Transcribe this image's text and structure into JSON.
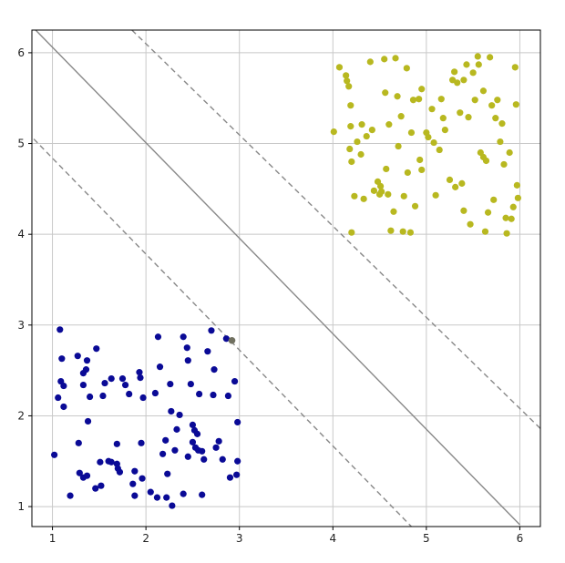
{
  "chart_data": {
    "type": "scatter",
    "title": "",
    "xlabel": "",
    "ylabel": "",
    "xlim": [
      0.78,
      6.22
    ],
    "ylim": [
      0.78,
      6.25
    ],
    "xticks": [
      1,
      2,
      3,
      4,
      5,
      6
    ],
    "yticks": [
      1,
      2,
      3,
      4,
      5,
      6
    ],
    "grid": true,
    "colors": {
      "class_a": "#0a0a96",
      "class_b": "#b8b820",
      "support_vector": "#707060",
      "lines": "#888888",
      "grid": "#c8c8c8",
      "axis": "#000000"
    },
    "lines": [
      {
        "name": "decision-boundary",
        "style": "solid",
        "x": [
          0.82,
          6.0
        ],
        "y": [
          6.25,
          0.8
        ]
      },
      {
        "name": "margin-lower",
        "style": "dashed",
        "x": [
          0.8,
          4.84
        ],
        "y": [
          5.05,
          0.78
        ]
      },
      {
        "name": "margin-upper",
        "style": "dashed",
        "x": [
          1.85,
          6.22
        ],
        "y": [
          6.25,
          1.86
        ]
      }
    ],
    "support_vectors": [
      {
        "x": 2.92,
        "y": 2.83
      }
    ],
    "series": [
      {
        "name": "",
        "color": "#0a0a96",
        "points": [
          [
            1.08,
            2.95
          ],
          [
            1.1,
            2.63
          ],
          [
            1.09,
            2.38
          ],
          [
            1.12,
            2.33
          ],
          [
            1.06,
            2.2
          ],
          [
            1.12,
            2.1
          ],
          [
            1.02,
            1.57
          ],
          [
            1.19,
            1.12
          ],
          [
            1.27,
            2.66
          ],
          [
            1.37,
            2.61
          ],
          [
            1.33,
            2.47
          ],
          [
            1.36,
            2.51
          ],
          [
            1.47,
            2.74
          ],
          [
            1.33,
            2.34
          ],
          [
            1.4,
            2.21
          ],
          [
            1.38,
            1.94
          ],
          [
            1.28,
            1.7
          ],
          [
            1.29,
            1.37
          ],
          [
            1.33,
            1.32
          ],
          [
            1.37,
            1.34
          ],
          [
            1.46,
            1.2
          ],
          [
            1.51,
            1.49
          ],
          [
            1.52,
            1.23
          ],
          [
            1.54,
            2.22
          ],
          [
            1.56,
            2.36
          ],
          [
            1.63,
            2.41
          ],
          [
            1.6,
            1.5
          ],
          [
            1.63,
            1.49
          ],
          [
            1.69,
            1.69
          ],
          [
            1.69,
            1.47
          ],
          [
            1.7,
            1.42
          ],
          [
            1.72,
            1.38
          ],
          [
            1.75,
            2.41
          ],
          [
            1.78,
            2.34
          ],
          [
            1.82,
            2.24
          ],
          [
            1.86,
            1.25
          ],
          [
            1.88,
            1.39
          ],
          [
            1.88,
            1.12
          ],
          [
            1.93,
            2.48
          ],
          [
            1.94,
            2.42
          ],
          [
            1.95,
            1.7
          ],
          [
            1.96,
            1.31
          ],
          [
            1.97,
            2.2
          ],
          [
            2.05,
            1.16
          ],
          [
            2.1,
            2.25
          ],
          [
            2.12,
            1.1
          ],
          [
            2.13,
            2.87
          ],
          [
            2.15,
            2.54
          ],
          [
            2.18,
            1.58
          ],
          [
            2.21,
            1.73
          ],
          [
            2.23,
            1.36
          ],
          [
            2.22,
            1.1
          ],
          [
            2.26,
            2.35
          ],
          [
            2.27,
            2.05
          ],
          [
            2.31,
            1.62
          ],
          [
            2.28,
            1.01
          ],
          [
            2.33,
            1.85
          ],
          [
            2.36,
            2.01
          ],
          [
            2.4,
            2.87
          ],
          [
            2.44,
            2.75
          ],
          [
            2.45,
            2.61
          ],
          [
            2.48,
            2.35
          ],
          [
            2.5,
            1.9
          ],
          [
            2.52,
            1.84
          ],
          [
            2.55,
            1.8
          ],
          [
            2.57,
            2.24
          ],
          [
            2.56,
            1.62
          ],
          [
            2.53,
            1.65
          ],
          [
            2.6,
            1.13
          ],
          [
            2.62,
            1.52
          ],
          [
            2.66,
            2.71
          ],
          [
            2.7,
            2.94
          ],
          [
            2.73,
            2.51
          ],
          [
            2.72,
            2.23
          ],
          [
            2.75,
            1.65
          ],
          [
            2.78,
            1.72
          ],
          [
            2.82,
            1.52
          ],
          [
            2.86,
            2.85
          ],
          [
            2.88,
            2.22
          ],
          [
            2.9,
            1.32
          ],
          [
            2.95,
            2.38
          ],
          [
            2.98,
            1.93
          ],
          [
            2.98,
            1.5
          ],
          [
            2.97,
            1.35
          ],
          [
            2.4,
            1.14
          ],
          [
            2.5,
            1.71
          ],
          [
            2.6,
            1.61
          ],
          [
            2.45,
            1.55
          ]
        ]
      },
      {
        "name": "",
        "color": "#b8b820",
        "points": [
          [
            4.01,
            5.13
          ],
          [
            4.07,
            5.84
          ],
          [
            4.14,
            5.75
          ],
          [
            4.15,
            5.69
          ],
          [
            4.17,
            5.63
          ],
          [
            4.19,
            5.42
          ],
          [
            4.19,
            5.19
          ],
          [
            4.18,
            4.94
          ],
          [
            4.2,
            4.8
          ],
          [
            4.2,
            4.02
          ],
          [
            4.23,
            4.42
          ],
          [
            4.26,
            5.02
          ],
          [
            4.3,
            4.88
          ],
          [
            4.31,
            5.21
          ],
          [
            4.33,
            4.39
          ],
          [
            4.36,
            5.08
          ],
          [
            4.4,
            5.9
          ],
          [
            4.42,
            5.15
          ],
          [
            4.44,
            4.48
          ],
          [
            4.48,
            4.58
          ],
          [
            4.5,
            4.44
          ],
          [
            4.51,
            4.53
          ],
          [
            4.52,
            4.47
          ],
          [
            4.55,
            5.93
          ],
          [
            4.56,
            5.56
          ],
          [
            4.57,
            4.72
          ],
          [
            4.59,
            4.44
          ],
          [
            4.6,
            5.21
          ],
          [
            4.62,
            4.04
          ],
          [
            4.65,
            4.25
          ],
          [
            4.67,
            5.94
          ],
          [
            4.69,
            5.52
          ],
          [
            4.7,
            4.97
          ],
          [
            4.73,
            5.3
          ],
          [
            4.75,
            4.03
          ],
          [
            4.76,
            4.42
          ],
          [
            4.79,
            5.83
          ],
          [
            4.8,
            4.68
          ],
          [
            4.83,
            4.02
          ],
          [
            4.84,
            5.12
          ],
          [
            4.86,
            5.48
          ],
          [
            4.88,
            4.31
          ],
          [
            4.92,
            5.49
          ],
          [
            4.93,
            4.82
          ],
          [
            4.95,
            4.71
          ],
          [
            5.0,
            5.12
          ],
          [
            5.02,
            5.07
          ],
          [
            5.06,
            5.38
          ],
          [
            5.08,
            5.01
          ],
          [
            5.1,
            4.43
          ],
          [
            5.14,
            4.93
          ],
          [
            5.16,
            5.49
          ],
          [
            5.18,
            5.28
          ],
          [
            5.25,
            4.6
          ],
          [
            5.28,
            5.7
          ],
          [
            5.3,
            5.79
          ],
          [
            5.33,
            5.67
          ],
          [
            5.31,
            4.52
          ],
          [
            5.36,
            5.34
          ],
          [
            5.38,
            4.56
          ],
          [
            5.4,
            4.26
          ],
          [
            5.43,
            5.87
          ],
          [
            5.45,
            5.29
          ],
          [
            5.47,
            4.11
          ],
          [
            5.5,
            5.78
          ],
          [
            5.52,
            5.48
          ],
          [
            5.55,
            5.96
          ],
          [
            5.56,
            5.87
          ],
          [
            5.58,
            4.9
          ],
          [
            5.61,
            4.85
          ],
          [
            5.61,
            5.58
          ],
          [
            5.63,
            4.03
          ],
          [
            5.64,
            4.81
          ],
          [
            5.66,
            4.24
          ],
          [
            5.68,
            5.95
          ],
          [
            5.7,
            5.42
          ],
          [
            5.72,
            4.38
          ],
          [
            5.74,
            5.28
          ],
          [
            5.76,
            5.48
          ],
          [
            5.79,
            5.02
          ],
          [
            5.81,
            5.22
          ],
          [
            5.83,
            4.77
          ],
          [
            5.85,
            4.18
          ],
          [
            5.86,
            4.01
          ],
          [
            5.89,
            4.9
          ],
          [
            5.91,
            4.17
          ],
          [
            5.93,
            4.3
          ],
          [
            5.95,
            5.84
          ],
          [
            5.96,
            5.43
          ],
          [
            5.97,
            4.54
          ],
          [
            5.98,
            4.4
          ],
          [
            5.2,
            5.15
          ],
          [
            5.4,
            5.7
          ],
          [
            4.95,
            5.6
          ]
        ]
      }
    ]
  }
}
